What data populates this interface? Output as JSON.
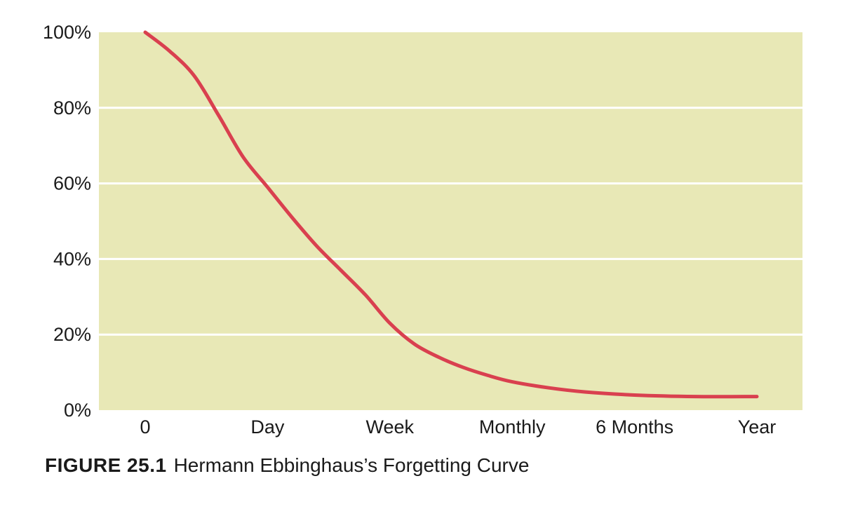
{
  "chart_data": {
    "type": "line",
    "categories": [
      "0",
      "Day",
      "Week",
      "Monthly",
      "6 Months",
      "Year"
    ],
    "y_ticks": [
      "0%",
      "20%",
      "40%",
      "60%",
      "80%",
      "100%"
    ],
    "ylim": [
      0,
      100
    ],
    "grid": true,
    "colors": {
      "plot_bg": "#e8e8b6",
      "line": "#d9404f",
      "grid": "#ffffff"
    },
    "series": [
      {
        "values": [
          [
            0,
            100
          ],
          [
            0.2,
            95
          ],
          [
            0.4,
            88.5
          ],
          [
            0.6,
            78
          ],
          [
            0.8,
            67
          ],
          [
            1,
            59
          ],
          [
            1.2,
            51
          ],
          [
            1.4,
            43.5
          ],
          [
            1.6,
            37
          ],
          [
            1.8,
            30.5
          ],
          [
            2,
            23
          ],
          [
            2.2,
            17.5
          ],
          [
            2.4,
            14
          ],
          [
            2.6,
            11.3
          ],
          [
            2.8,
            9.2
          ],
          [
            3,
            7.5
          ],
          [
            3.3,
            5.9
          ],
          [
            3.6,
            4.8
          ],
          [
            4,
            4.0
          ],
          [
            4.5,
            3.6
          ],
          [
            5,
            3.6
          ]
        ]
      }
    ]
  },
  "caption": {
    "label": "FIGURE 25.1",
    "text": "Hermann Ebbinghaus’s Forgetting Curve"
  }
}
